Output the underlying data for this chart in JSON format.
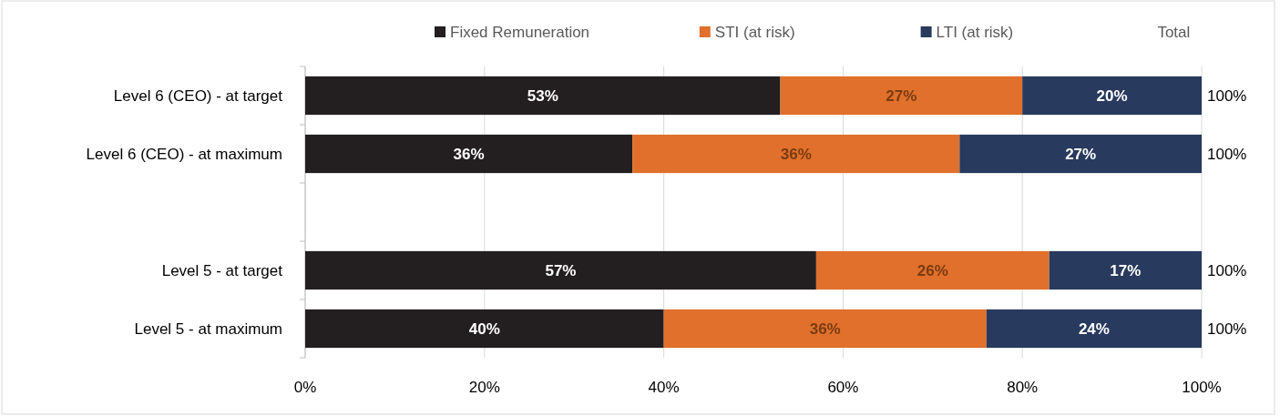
{
  "chart_data": {
    "type": "bar",
    "orientation": "horizontal",
    "stacked": true,
    "categories": [
      "Level 6 (CEO) - at target",
      "Level 6 (CEO) - at maximum",
      null,
      "Level 5 - at target",
      "Level 5 - at maximum"
    ],
    "series": [
      {
        "name": "Fixed Remuneration",
        "color": "#231f20",
        "values": [
          53,
          36.5,
          null,
          57,
          40
        ],
        "value_labels": [
          "53%",
          "36%",
          null,
          "57%",
          "40%"
        ]
      },
      {
        "name": "STI (at risk)",
        "color": "#e0702b",
        "values": [
          27,
          36.5,
          null,
          26,
          36
        ],
        "value_labels": [
          "27%",
          "36%",
          null,
          "26%",
          "36%"
        ]
      },
      {
        "name": "LTI (at risk)",
        "color": "#283a5e",
        "values": [
          20,
          27,
          null,
          17,
          24
        ],
        "value_labels": [
          "20%",
          "27%",
          null,
          "17%",
          "24%"
        ]
      }
    ],
    "totals": [
      "100%",
      "100%",
      null,
      "100%",
      "100%"
    ],
    "annotations": [
      "Total"
    ],
    "xlim": [
      0,
      100
    ],
    "xticks": [
      {
        "value": 0,
        "label": "0%"
      },
      {
        "value": 20,
        "label": "20%"
      },
      {
        "value": 40,
        "label": "40%"
      },
      {
        "value": 60,
        "label": "60%"
      },
      {
        "value": 80,
        "label": "80%"
      },
      {
        "value": 100,
        "label": "100%"
      }
    ],
    "grid": "x",
    "legend": "top right"
  }
}
